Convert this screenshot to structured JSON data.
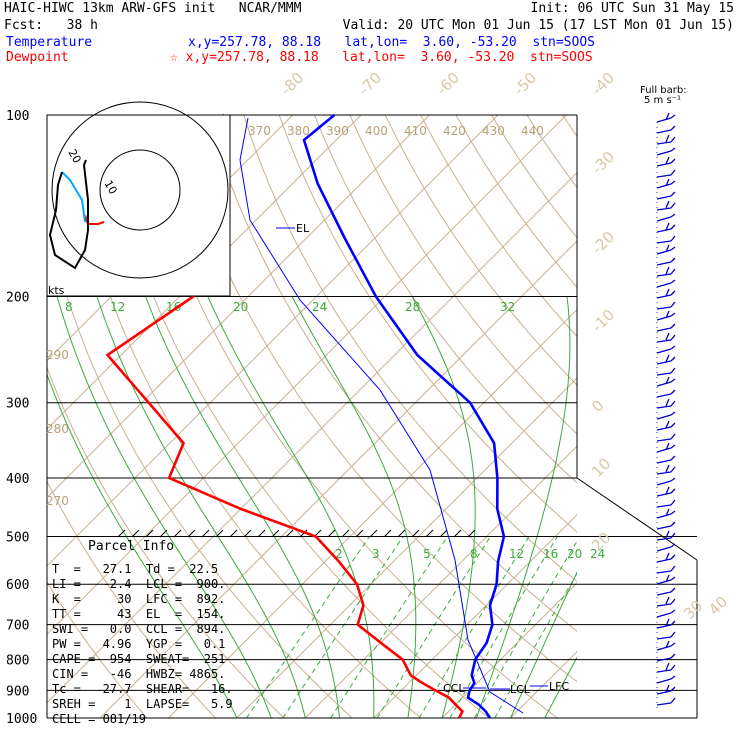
{
  "header": {
    "line1_left": "HAIC-HIWC 13km ARW-GFS init   NCAR/MMM",
    "line1_right": "Init: 06 UTC Sun 31 May 15",
    "line2_left": "Fcst:   38 h",
    "line2_right": "Valid: 20 UTC Mon 01 Jun 15 (17 LST Mon 01 Jun 15)",
    "temp_label": "Temperature",
    "temp_info": "x,y=257.78, 88.18   lat,lon=  3.60, -53.20  stn=SOOS",
    "dew_label": "Dewpoint",
    "dew_info": "☆ x,y=257.78, 88.18   lat,lon=  3.60, -53.20  stn=SOOS",
    "temp_color": "#0000ff",
    "dew_color": "#ff0000"
  },
  "barb_legend": {
    "line1": "Full barb:",
    "line2": "5 m s⁻¹"
  },
  "hodograph": {
    "ring_outer": "20",
    "ring_inner": "10",
    "units": "kts"
  },
  "chart_data": {
    "type": "line",
    "title": "",
    "xlabel": "",
    "ylabel": "",
    "pressure_levels": [
      "100",
      "200",
      "300",
      "400",
      "500",
      "600",
      "700",
      "800",
      "900",
      "1000"
    ],
    "isotherm_labels": [
      "-80",
      "-70",
      "-60",
      "-50",
      "-40",
      "-30",
      "-20",
      "-10",
      "0",
      "10",
      "20",
      "30",
      "40"
    ],
    "theta_labels": [
      "370",
      "380",
      "390",
      "400",
      "410",
      "420",
      "430",
      "440"
    ],
    "theta_left_labels": [
      "290",
      "280",
      "270"
    ],
    "mixing_upper_labels": [
      "8",
      "12",
      "16",
      "20",
      "24",
      "28",
      "32"
    ],
    "mixing_lower_labels": [
      "2",
      "3",
      "5",
      "8",
      "12",
      "16",
      "20",
      "24"
    ],
    "level_markers": {
      "el": "EL",
      "ccl": "CCL",
      "lcl": "LCL",
      "lfc": "LFC"
    },
    "series": [
      {
        "name": "Temperature",
        "color": "#0000ff",
        "points": [
          [
            27,
            1000
          ],
          [
            25.4,
            975
          ],
          [
            23.4,
            950
          ],
          [
            20.8,
            925
          ],
          [
            20,
            900
          ],
          [
            19.6,
            875
          ],
          [
            18.1,
            850
          ],
          [
            16.3,
            800
          ],
          [
            15.5,
            750
          ],
          [
            13.7,
            700
          ],
          [
            10.5,
            650
          ],
          [
            8.4,
            600
          ],
          [
            5.3,
            550
          ],
          [
            2.5,
            500
          ],
          [
            -2.5,
            450
          ],
          [
            -7,
            400
          ],
          [
            -12.6,
            350
          ],
          [
            -22,
            300
          ],
          [
            -36.7,
            250
          ],
          [
            -51.3,
            200
          ],
          [
            -64.4,
            160
          ],
          [
            -76.3,
            130
          ],
          [
            -84.7,
            110
          ],
          [
            -83.9,
            100
          ]
        ]
      },
      {
        "name": "Dewpoint",
        "color": "#ff0000",
        "points": [
          [
            22.5,
            1000
          ],
          [
            22,
            975
          ],
          [
            20,
            950
          ],
          [
            18,
            925
          ],
          [
            15,
            900
          ],
          [
            12,
            875
          ],
          [
            9.2,
            850
          ],
          [
            5.7,
            800
          ],
          [
            0,
            750
          ],
          [
            -6,
            700
          ],
          [
            -8,
            650
          ],
          [
            -12,
            600
          ],
          [
            -18,
            550
          ],
          [
            -25,
            500
          ],
          [
            -40,
            450
          ],
          [
            -55,
            400
          ],
          [
            -58,
            350
          ],
          [
            -69,
            300
          ],
          [
            -82,
            250
          ],
          [
            -78,
            200
          ],
          [
            -95,
            160
          ],
          [
            -103,
            140
          ],
          [
            -104,
            125
          ],
          [
            -104,
            113
          ],
          [
            -100,
            100
          ]
        ]
      }
    ]
  },
  "parcel_info": {
    "title": "Parcel Info",
    "rows": [
      "T  =   27.1  Td =  22.5",
      "LI =   -2.4  LCL =  900.",
      "K  =     30  LFC =  892.",
      "TT =     43  EL  =  154.",
      "SWI =   0.0  CCL =  894.",
      "PW =   4.96  YGP =   0.1",
      "CAPE =  954  SWEAT=  251",
      "CIN =   -46  HWBZ= 4865.",
      "Tc =   27.7  SHEAR=   16.",
      "SREH =    1  LAPSE=   5.9",
      "CELL = 081/19"
    ]
  }
}
